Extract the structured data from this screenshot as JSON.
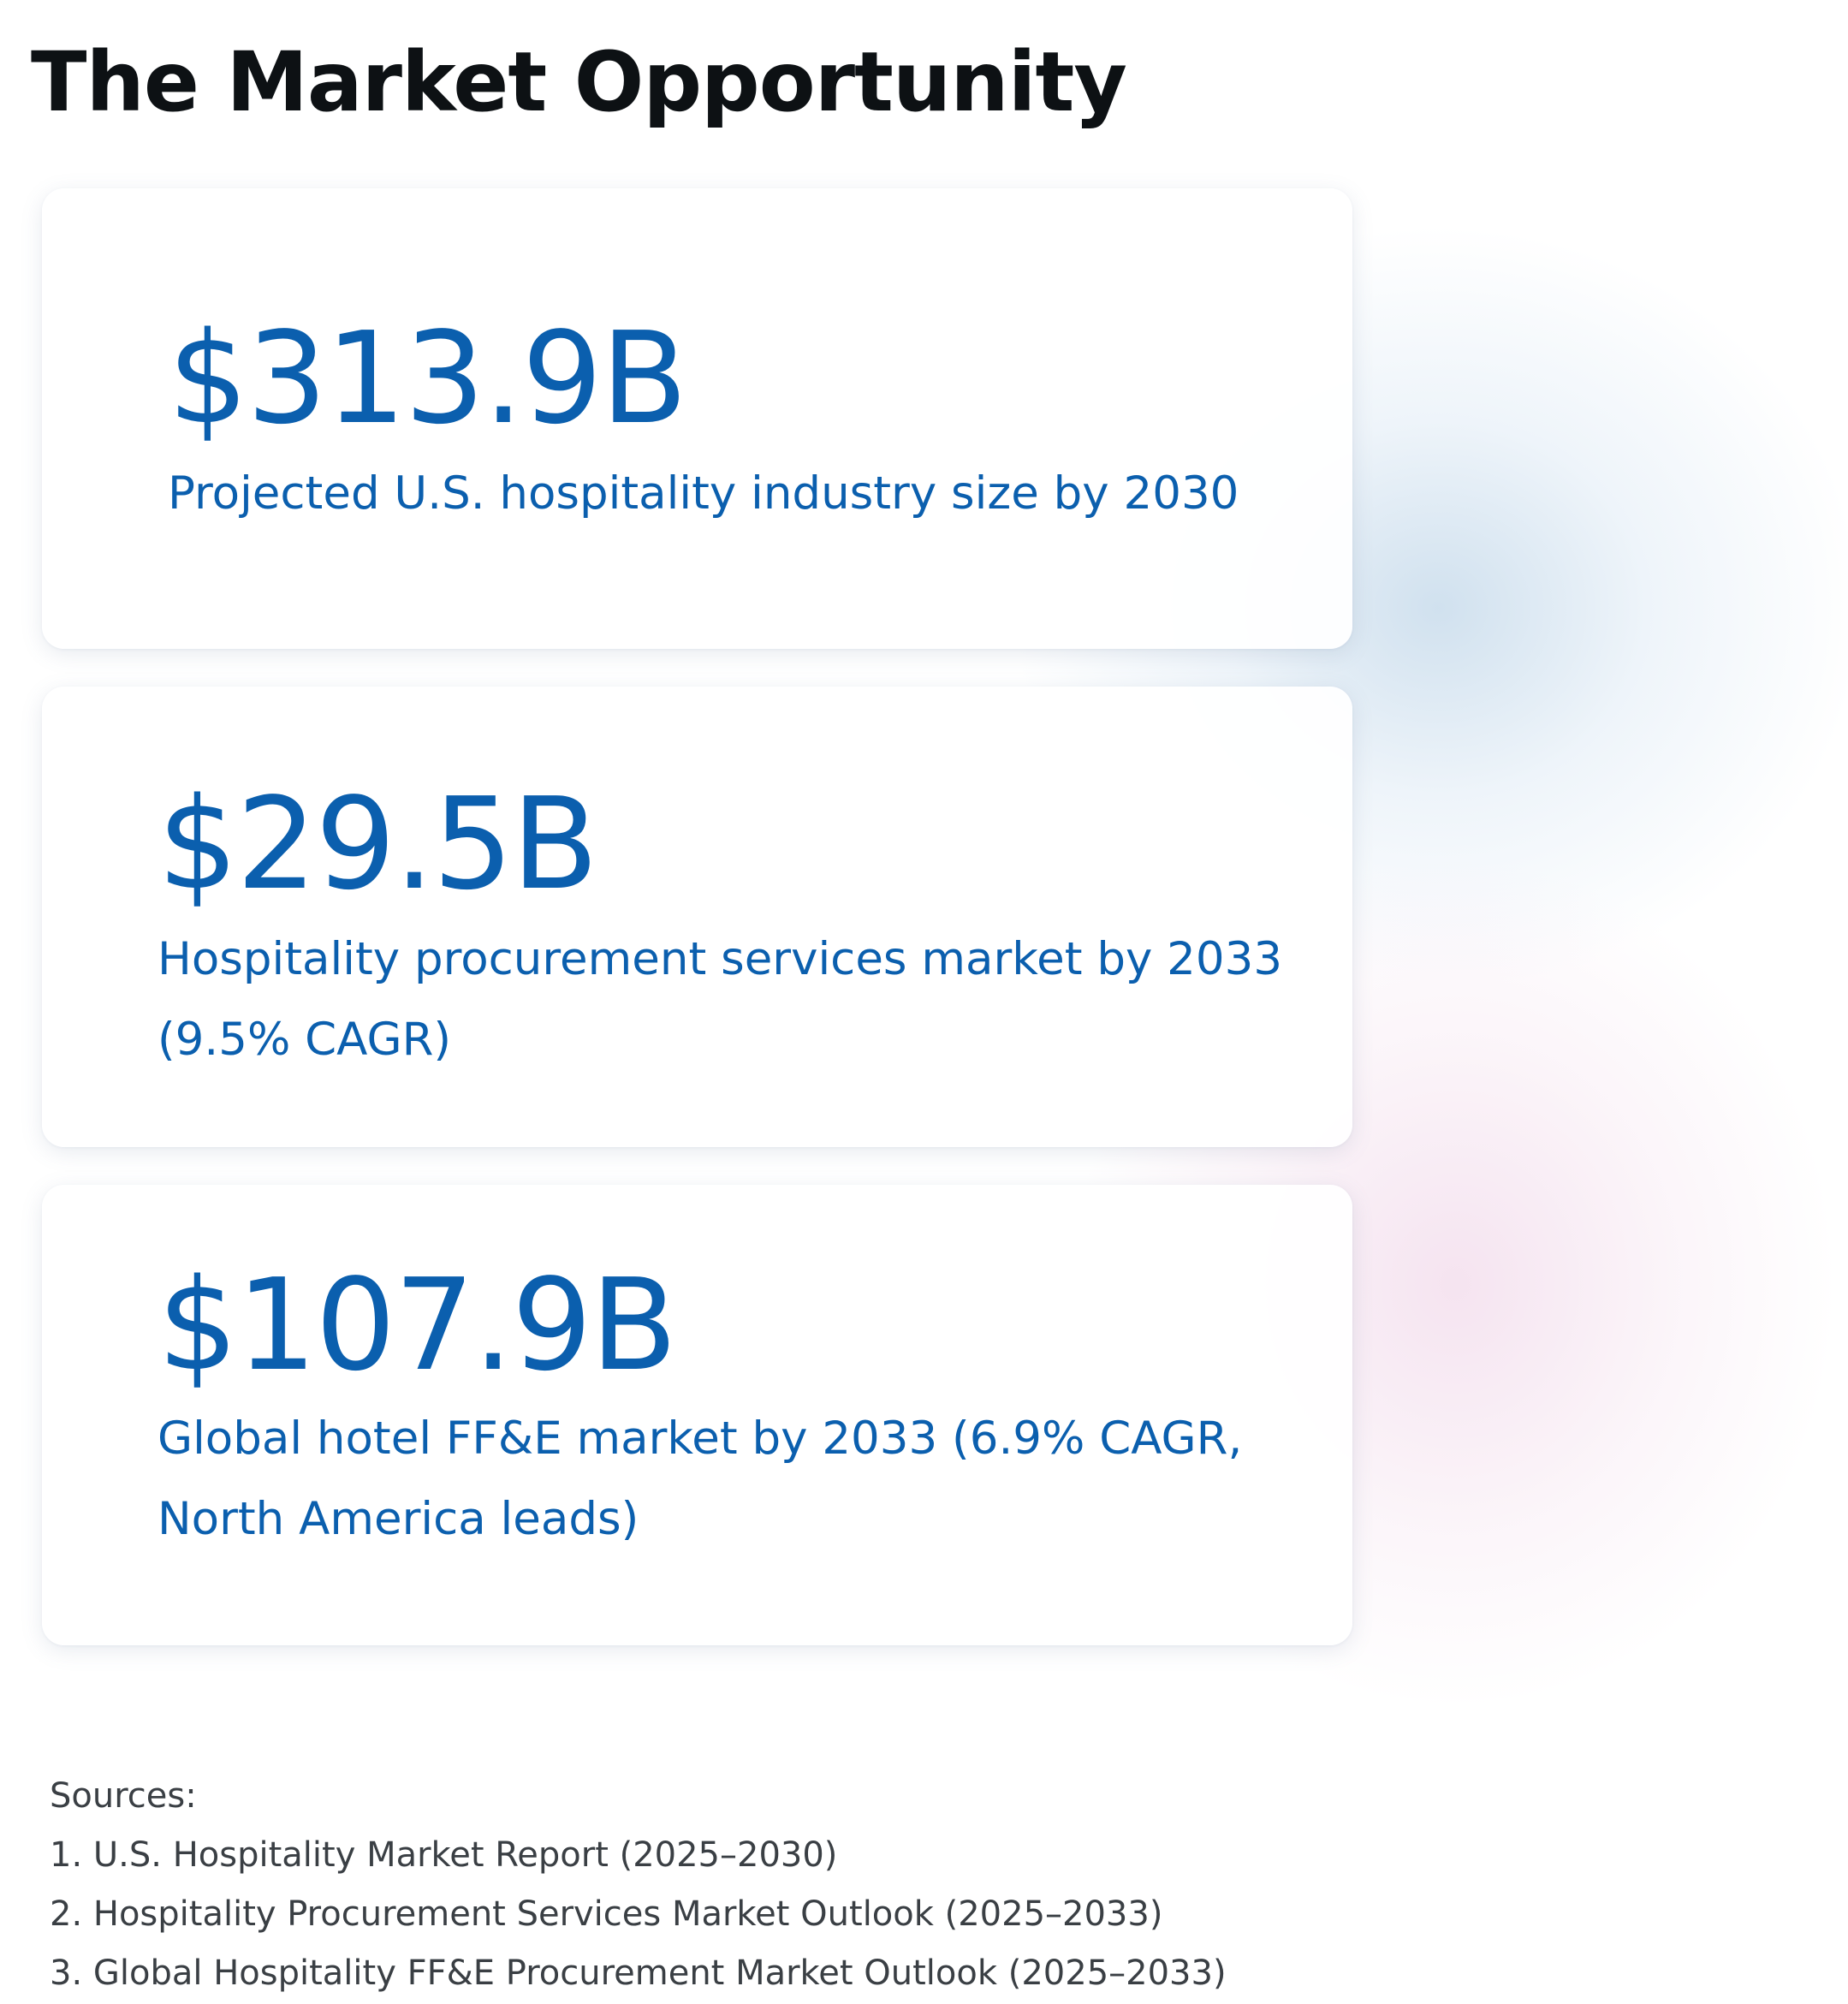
{
  "page": {
    "title": "The Market Opportunity"
  },
  "stats": [
    {
      "value": "$313.9B",
      "description": "Projected U.S. hospitality industry size by 2030"
    },
    {
      "value": "$29.5B",
      "description": "Hospitality procurement services market by 2033 (9.5% CAGR)"
    },
    {
      "value": "$107.9B",
      "description": "Global hotel FF&E market by 2033 (6.9% CAGR, North America leads)"
    }
  ],
  "sources": {
    "heading": "Sources:",
    "items": [
      "1. U.S. Hospitality Market Report (2025–2030)",
      "2. Hospitality Procurement Services Market Outlook (2025–2033)",
      "3. Global Hospitality FF&E Procurement Market Outlook (2025–2033)"
    ]
  },
  "colors": {
    "title": "#0d1114",
    "accent": "#0b5fae",
    "sources_text": "#3a3f44",
    "card_background": "#ffffff"
  }
}
